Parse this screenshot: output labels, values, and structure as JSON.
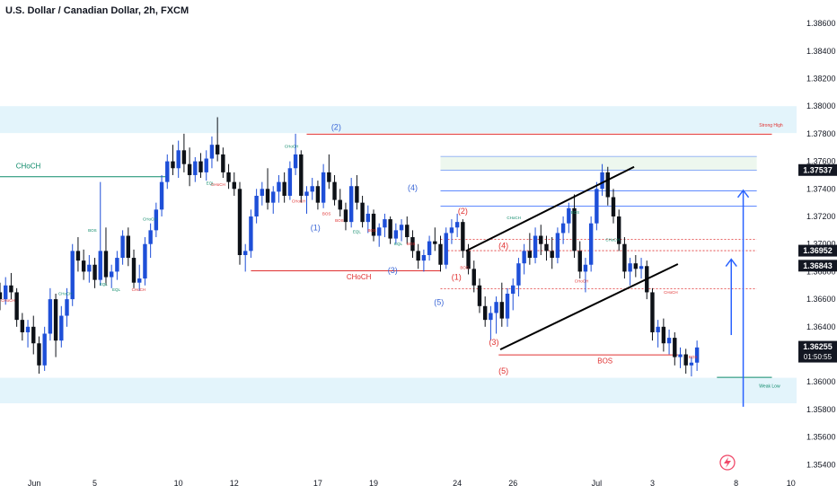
{
  "header": {
    "title": "U.S. Dollar / Canadian Dollar, 2h, FXCM"
  },
  "chart_data": {
    "type": "candlestick",
    "ylim": [
      1.3535,
      1.3877
    ],
    "xlim": [
      0,
      100
    ],
    "y_ticks": [
      "1.38600",
      "1.38400",
      "1.38200",
      "1.38000",
      "1.37800",
      "1.37600",
      "1.37400",
      "1.37200",
      "1.37000",
      "1.36800",
      "1.36600",
      "1.36400",
      "1.36200",
      "1.36000",
      "1.35800",
      "1.35600",
      "1.35400"
    ],
    "x_ticks": [
      {
        "label": "Jun",
        "x": 4.3
      },
      {
        "label": "5",
        "x": 11.9
      },
      {
        "label": "10",
        "x": 22.4
      },
      {
        "label": "12",
        "x": 29.4
      },
      {
        "label": "17",
        "x": 39.9
      },
      {
        "label": "19",
        "x": 46.9
      },
      {
        "label": "24",
        "x": 57.4
      },
      {
        "label": "26",
        "x": 64.4
      },
      {
        "label": "Jul",
        "x": 74.9
      },
      {
        "label": "3",
        "x": 81.9
      },
      {
        "label": "8",
        "x": 92.4
      },
      {
        "label": "10",
        "x": 99.3
      }
    ],
    "price_labels": [
      {
        "value": "1.37537",
        "price": 1.37537,
        "style": "dark"
      },
      {
        "value": "1.36952",
        "price": 1.36952,
        "style": "dark"
      },
      {
        "value": "1.36843",
        "price": 1.36843,
        "style": "dark"
      },
      {
        "value": "1.36255",
        "price": 1.36255,
        "style": "dark",
        "sub": "01:50:55"
      }
    ],
    "zones": [
      {
        "name": "supply-zone",
        "y1": 1.38,
        "y2": 1.37805,
        "color": "#e3f4fb"
      },
      {
        "name": "demand-zone",
        "y1": 1.3603,
        "y2": 1.35845,
        "color": "#e3f4fb"
      }
    ],
    "levels": [
      {
        "name": "strong-high",
        "y": 1.37797,
        "x1": 38.5,
        "x2": 96.9,
        "color": "#e03030",
        "label": "Strong High",
        "label_x": 95.3,
        "label_y": 1.3785
      },
      {
        "name": "weak-low",
        "y": 1.36033,
        "x1": 90.0,
        "x2": 96.9,
        "color": "#0d8a6a",
        "label": "Weak Low",
        "label_x": 95.3,
        "label_y": 1.3596
      },
      {
        "name": "choch-left",
        "y": 1.37488,
        "x1": 0,
        "x2": 21.0,
        "color": "#0d8a6a",
        "label": "CHoCH",
        "label_x": 2.0,
        "label_y": 1.3755
      },
      {
        "name": "choch-mid",
        "y": 1.36806,
        "x1": 31.5,
        "x2": 55.3,
        "color": "#e03030",
        "label": "CHoCH",
        "label_x": 43.5,
        "label_y": 1.36745
      },
      {
        "name": "bos-low",
        "y": 1.36196,
        "x1": 62.6,
        "x2": 85.1,
        "color": "#e03030",
        "label": "BOS",
        "label_x": 75.0,
        "label_y": 1.36135
      }
    ],
    "fib_lines": [
      {
        "y": 1.37635,
        "color": "#2962ff"
      },
      {
        "y": 1.37535,
        "color": "#2962ff"
      },
      {
        "y": 1.37385,
        "color": "#2962ff"
      },
      {
        "y": 1.37275,
        "color": "#2962ff"
      },
      {
        "y": 1.37035,
        "color": "#e03030"
      },
      {
        "y": 1.36952,
        "color": "#e03030"
      },
      {
        "y": 1.36675,
        "color": "#e03030"
      }
    ],
    "channel": [
      {
        "x1": 58.5,
        "y1": 1.3695,
        "x2": 79.6,
        "y2": 1.3756
      },
      {
        "x1": 62.8,
        "y1": 1.36235,
        "x2": 85.1,
        "y2": 1.36855
      }
    ],
    "arrows": [
      {
        "x": 93.3,
        "y1": 1.3582,
        "y2": 1.3739
      },
      {
        "x": 91.8,
        "y1": 1.3634,
        "y2": 1.3689
      }
    ],
    "wave_labels": [
      {
        "text": "(2)",
        "x": 42.2,
        "y": 1.3783,
        "color": "#3a66d6"
      },
      {
        "text": "(1)",
        "x": 39.6,
        "y": 1.371,
        "color": "#3a66d6"
      },
      {
        "text": "(3)",
        "x": 49.3,
        "y": 1.3679,
        "color": "#3a66d6"
      },
      {
        "text": "(4)",
        "x": 51.8,
        "y": 1.3739,
        "color": "#3a66d6"
      },
      {
        "text": "(5)",
        "x": 55.1,
        "y": 1.3656,
        "color": "#3a66d6"
      },
      {
        "text": "(2)",
        "x": 58.1,
        "y": 1.3722,
        "color": "#e03030"
      },
      {
        "text": "(1)",
        "x": 57.3,
        "y": 1.3674,
        "color": "#e03030"
      },
      {
        "text": "(4)",
        "x": 63.2,
        "y": 1.3697,
        "color": "#e03030"
      },
      {
        "text": "(3)",
        "x": 62.0,
        "y": 1.3627,
        "color": "#e03030"
      },
      {
        "text": "(5)",
        "x": 63.2,
        "y": 1.3606,
        "color": "#e03030"
      }
    ],
    "small_labels": [
      {
        "text": "BOS",
        "x": 11.6,
        "y": 1.3709,
        "color": "#0d8a6a"
      },
      {
        "text": "CHoCH",
        "x": 18.8,
        "y": 1.3717,
        "color": "#0d8a6a"
      },
      {
        "text": "CHoCH",
        "x": 8.2,
        "y": 1.3663,
        "color": "#0d8a6a"
      },
      {
        "text": "EQL",
        "x": 13.0,
        "y": 1.367,
        "color": "#0d8a6a"
      },
      {
        "text": "EQL",
        "x": 14.6,
        "y": 1.3666,
        "color": "#0d8a6a"
      },
      {
        "text": "CHoCH",
        "x": 17.4,
        "y": 1.3666,
        "color": "#e03030"
      },
      {
        "text": "CHoCH",
        "x": 1.0,
        "y": 1.3658,
        "color": "#e03030"
      },
      {
        "text": "EQL",
        "x": 26.4,
        "y": 1.3743,
        "color": "#0d8a6a"
      },
      {
        "text": "CHoCH",
        "x": 27.4,
        "y": 1.3742,
        "color": "#e03030"
      },
      {
        "text": "CHoCH",
        "x": 36.6,
        "y": 1.377,
        "color": "#0d8a6a"
      },
      {
        "text": "CHoCH",
        "x": 37.5,
        "y": 1.373,
        "color": "#e03030"
      },
      {
        "text": "BOS",
        "x": 41.0,
        "y": 1.3721,
        "color": "#e03030"
      },
      {
        "text": "BOS",
        "x": 42.6,
        "y": 1.3716,
        "color": "#e03030"
      },
      {
        "text": "EQL",
        "x": 44.8,
        "y": 1.3708,
        "color": "#0d8a6a"
      },
      {
        "text": "BOS",
        "x": 46.7,
        "y": 1.3709,
        "color": "#e03030"
      },
      {
        "text": "EQL",
        "x": 50.0,
        "y": 1.3699,
        "color": "#0d8a6a"
      },
      {
        "text": "BOS",
        "x": 51.6,
        "y": 1.3699,
        "color": "#e03030"
      },
      {
        "text": "BOS",
        "x": 58.3,
        "y": 1.3682,
        "color": "#e03030"
      },
      {
        "text": "CHoCH",
        "x": 64.5,
        "y": 1.3718,
        "color": "#0d8a6a"
      },
      {
        "text": "BOS",
        "x": 72.2,
        "y": 1.3722,
        "color": "#0d8a6a"
      },
      {
        "text": "CHoCH",
        "x": 76.9,
        "y": 1.3702,
        "color": "#0d8a6a"
      },
      {
        "text": "CHoCH",
        "x": 73.0,
        "y": 1.3672,
        "color": "#e03030"
      },
      {
        "text": "CHoCH",
        "x": 84.2,
        "y": 1.3664,
        "color": "#e03030"
      },
      {
        "text": "BOS",
        "x": 87.0,
        "y": 1.3617,
        "color": "#e03030"
      }
    ],
    "candles": [
      [
        0.0,
        1.3665,
        1.3672,
        1.3652,
        1.366
      ],
      [
        0.7,
        1.366,
        1.3676,
        1.3656,
        1.367
      ],
      [
        1.4,
        1.367,
        1.3679,
        1.366,
        1.3665
      ],
      [
        2.1,
        1.3665,
        1.3668,
        1.364,
        1.3645
      ],
      [
        2.8,
        1.3645,
        1.365,
        1.363,
        1.3636
      ],
      [
        3.5,
        1.3636,
        1.3645,
        1.3625,
        1.364
      ],
      [
        4.2,
        1.364,
        1.3648,
        1.362,
        1.3628
      ],
      [
        4.9,
        1.3628,
        1.3633,
        1.3606,
        1.3612
      ],
      [
        5.6,
        1.3612,
        1.364,
        1.3608,
        1.3635
      ],
      [
        6.3,
        1.3635,
        1.3668,
        1.363,
        1.366
      ],
      [
        7.0,
        1.366,
        1.3664,
        1.3618,
        1.363
      ],
      [
        7.7,
        1.363,
        1.3655,
        1.3625,
        1.3648
      ],
      [
        8.4,
        1.3648,
        1.3668,
        1.364,
        1.366
      ],
      [
        9.1,
        1.366,
        1.37,
        1.3655,
        1.3695
      ],
      [
        9.8,
        1.3695,
        1.3705,
        1.368,
        1.3688
      ],
      [
        10.5,
        1.3688,
        1.3696,
        1.3674,
        1.368
      ],
      [
        11.2,
        1.368,
        1.3692,
        1.3672,
        1.3685
      ],
      [
        11.9,
        1.3685,
        1.369,
        1.3668,
        1.3674
      ],
      [
        12.6,
        1.3674,
        1.3745,
        1.367,
        1.3695
      ],
      [
        13.3,
        1.3695,
        1.3712,
        1.367,
        1.3676
      ],
      [
        14.0,
        1.3676,
        1.3685,
        1.3668,
        1.368
      ],
      [
        14.7,
        1.368,
        1.3695,
        1.3674,
        1.369
      ],
      [
        15.4,
        1.369,
        1.371,
        1.3685,
        1.3706
      ],
      [
        16.1,
        1.3706,
        1.3712,
        1.3684,
        1.369
      ],
      [
        16.8,
        1.369,
        1.3696,
        1.3668,
        1.3672
      ],
      [
        17.5,
        1.3672,
        1.3685,
        1.3666,
        1.3675
      ],
      [
        18.2,
        1.3675,
        1.3705,
        1.367,
        1.37
      ],
      [
        18.9,
        1.37,
        1.3715,
        1.369,
        1.371
      ],
      [
        19.6,
        1.371,
        1.373,
        1.3705,
        1.3725
      ],
      [
        20.3,
        1.3725,
        1.375,
        1.372,
        1.3745
      ],
      [
        21.0,
        1.3745,
        1.3765,
        1.374,
        1.376
      ],
      [
        21.7,
        1.376,
        1.3772,
        1.375,
        1.3755
      ],
      [
        22.4,
        1.3755,
        1.3775,
        1.3748,
        1.3768
      ],
      [
        23.1,
        1.3768,
        1.378,
        1.3752,
        1.3758
      ],
      [
        23.8,
        1.3758,
        1.377,
        1.3742,
        1.375
      ],
      [
        24.5,
        1.375,
        1.3763,
        1.3745,
        1.376
      ],
      [
        25.2,
        1.376,
        1.3766,
        1.3748,
        1.3752
      ],
      [
        25.9,
        1.3752,
        1.3768,
        1.3746,
        1.3762
      ],
      [
        26.6,
        1.3762,
        1.3778,
        1.3755,
        1.3772
      ],
      [
        27.3,
        1.3772,
        1.3792,
        1.376,
        1.3765
      ],
      [
        28.0,
        1.3765,
        1.377,
        1.3748,
        1.3752
      ],
      [
        28.7,
        1.3752,
        1.3758,
        1.374,
        1.3745
      ],
      [
        29.4,
        1.3745,
        1.3752,
        1.3735,
        1.374
      ],
      [
        30.1,
        1.374,
        1.3745,
        1.3685,
        1.3692
      ],
      [
        30.8,
        1.3692,
        1.37,
        1.368,
        1.3695
      ],
      [
        31.5,
        1.3695,
        1.3725,
        1.369,
        1.372
      ],
      [
        32.2,
        1.372,
        1.374,
        1.3715,
        1.3735
      ],
      [
        32.9,
        1.3735,
        1.3745,
        1.3728,
        1.374
      ],
      [
        33.6,
        1.374,
        1.3755,
        1.3725,
        1.373
      ],
      [
        34.3,
        1.373,
        1.3742,
        1.3722,
        1.3738
      ],
      [
        35.0,
        1.3738,
        1.375,
        1.373,
        1.3745
      ],
      [
        35.7,
        1.3745,
        1.3752,
        1.373,
        1.3735
      ],
      [
        36.4,
        1.3735,
        1.376,
        1.3732,
        1.3755
      ],
      [
        37.1,
        1.3755,
        1.378,
        1.375,
        1.3765
      ],
      [
        37.8,
        1.3765,
        1.3768,
        1.373,
        1.3735
      ],
      [
        38.5,
        1.3735,
        1.3742,
        1.3722,
        1.3738
      ],
      [
        39.2,
        1.3738,
        1.3748,
        1.3732,
        1.3742
      ],
      [
        39.9,
        1.3742,
        1.3746,
        1.3725,
        1.373
      ],
      [
        40.6,
        1.373,
        1.3758,
        1.3726,
        1.3752
      ],
      [
        41.3,
        1.3752,
        1.3765,
        1.374,
        1.3745
      ],
      [
        42.0,
        1.3745,
        1.375,
        1.3728,
        1.3732
      ],
      [
        42.7,
        1.3732,
        1.374,
        1.372,
        1.3725
      ],
      [
        43.4,
        1.3725,
        1.373,
        1.371,
        1.3716
      ],
      [
        44.1,
        1.3716,
        1.3748,
        1.3712,
        1.3742
      ],
      [
        44.8,
        1.3742,
        1.375,
        1.3725,
        1.373
      ],
      [
        45.5,
        1.373,
        1.3735,
        1.3712,
        1.3716
      ],
      [
        46.2,
        1.3716,
        1.3728,
        1.3708,
        1.3722
      ],
      [
        46.9,
        1.3722,
        1.3725,
        1.3702,
        1.3706
      ],
      [
        47.6,
        1.3706,
        1.3715,
        1.3698,
        1.3712
      ],
      [
        48.3,
        1.3712,
        1.3722,
        1.3705,
        1.3718
      ],
      [
        49.0,
        1.3718,
        1.372,
        1.37,
        1.3704
      ],
      [
        49.7,
        1.3704,
        1.3715,
        1.37,
        1.371
      ],
      [
        50.4,
        1.371,
        1.3718,
        1.3702,
        1.3714
      ],
      [
        51.1,
        1.3714,
        1.372,
        1.37,
        1.3705
      ],
      [
        51.8,
        1.3705,
        1.371,
        1.369,
        1.3695
      ],
      [
        52.5,
        1.3695,
        1.37,
        1.3682,
        1.3688
      ],
      [
        53.2,
        1.3688,
        1.3696,
        1.368,
        1.3692
      ],
      [
        53.9,
        1.3692,
        1.3706,
        1.3688,
        1.3702
      ],
      [
        54.6,
        1.3702,
        1.3712,
        1.3695,
        1.37
      ],
      [
        55.3,
        1.37,
        1.3706,
        1.368,
        1.3685
      ],
      [
        56.0,
        1.3685,
        1.3712,
        1.3682,
        1.3708
      ],
      [
        56.7,
        1.3708,
        1.3718,
        1.37,
        1.3712
      ],
      [
        57.4,
        1.3712,
        1.3722,
        1.3705,
        1.3716
      ],
      [
        58.1,
        1.3716,
        1.3718,
        1.369,
        1.3695
      ],
      [
        58.8,
        1.3695,
        1.37,
        1.3678,
        1.3682
      ],
      [
        59.5,
        1.3682,
        1.3688,
        1.3665,
        1.367
      ],
      [
        60.2,
        1.367,
        1.3675,
        1.365,
        1.3655
      ],
      [
        60.9,
        1.3655,
        1.3662,
        1.364,
        1.3645
      ],
      [
        61.6,
        1.3645,
        1.3655,
        1.363,
        1.365
      ],
      [
        62.3,
        1.365,
        1.3662,
        1.3635,
        1.3658
      ],
      [
        63.0,
        1.3658,
        1.3672,
        1.364,
        1.3646
      ],
      [
        63.7,
        1.3646,
        1.3668,
        1.364,
        1.3664
      ],
      [
        64.4,
        1.3664,
        1.3675,
        1.3652,
        1.367
      ],
      [
        65.1,
        1.367,
        1.369,
        1.3662,
        1.3686
      ],
      [
        65.8,
        1.3686,
        1.37,
        1.3678,
        1.3695
      ],
      [
        66.5,
        1.3695,
        1.3708,
        1.3685,
        1.369
      ],
      [
        67.2,
        1.369,
        1.3712,
        1.3686,
        1.3706
      ],
      [
        67.9,
        1.3706,
        1.3714,
        1.3692,
        1.37
      ],
      [
        68.6,
        1.37,
        1.3706,
        1.3688,
        1.3695
      ],
      [
        69.3,
        1.3695,
        1.3705,
        1.3682,
        1.369
      ],
      [
        70.0,
        1.369,
        1.3712,
        1.3686,
        1.3708
      ],
      [
        70.7,
        1.3708,
        1.372,
        1.37,
        1.3715
      ],
      [
        71.4,
        1.3715,
        1.373,
        1.3708,
        1.3726
      ],
      [
        72.1,
        1.3726,
        1.3736,
        1.369,
        1.3695
      ],
      [
        72.8,
        1.3695,
        1.3702,
        1.3675,
        1.368
      ],
      [
        73.5,
        1.368,
        1.369,
        1.3665,
        1.3685
      ],
      [
        74.2,
        1.3685,
        1.372,
        1.368,
        1.3715
      ],
      [
        74.9,
        1.3715,
        1.3745,
        1.371,
        1.374
      ],
      [
        75.6,
        1.374,
        1.3758,
        1.3735,
        1.3752
      ],
      [
        76.3,
        1.3752,
        1.3756,
        1.3728,
        1.3734
      ],
      [
        77.0,
        1.3734,
        1.374,
        1.3715,
        1.372
      ],
      [
        77.7,
        1.372,
        1.3725,
        1.3695,
        1.37
      ],
      [
        78.4,
        1.37,
        1.3705,
        1.3675,
        1.368
      ],
      [
        79.1,
        1.368,
        1.369,
        1.367,
        1.3686
      ],
      [
        79.8,
        1.3686,
        1.3692,
        1.3676,
        1.3682
      ],
      [
        80.5,
        1.3682,
        1.369,
        1.3675,
        1.3684
      ],
      [
        81.2,
        1.3684,
        1.3688,
        1.366,
        1.3665
      ],
      [
        81.9,
        1.3665,
        1.3668,
        1.363,
        1.3636
      ],
      [
        82.6,
        1.3636,
        1.3645,
        1.3625,
        1.364
      ],
      [
        83.3,
        1.364,
        1.3646,
        1.3622,
        1.3628
      ],
      [
        84.0,
        1.3628,
        1.3638,
        1.362,
        1.3632
      ],
      [
        84.7,
        1.3632,
        1.3636,
        1.3612,
        1.3618
      ],
      [
        85.4,
        1.3618,
        1.3625,
        1.361,
        1.362
      ],
      [
        86.1,
        1.362,
        1.3624,
        1.3606,
        1.3612
      ],
      [
        86.8,
        1.3612,
        1.3618,
        1.3604,
        1.3614
      ],
      [
        87.5,
        1.3614,
        1.363,
        1.3608,
        1.3625
      ]
    ]
  },
  "colors": {
    "bull": "#1e4fd8",
    "bear": "#0d1117",
    "line": "#2962ff",
    "axis_text": "#131722",
    "label_dark": "#131722"
  },
  "icons": {
    "watermark": "lightning-icon"
  }
}
